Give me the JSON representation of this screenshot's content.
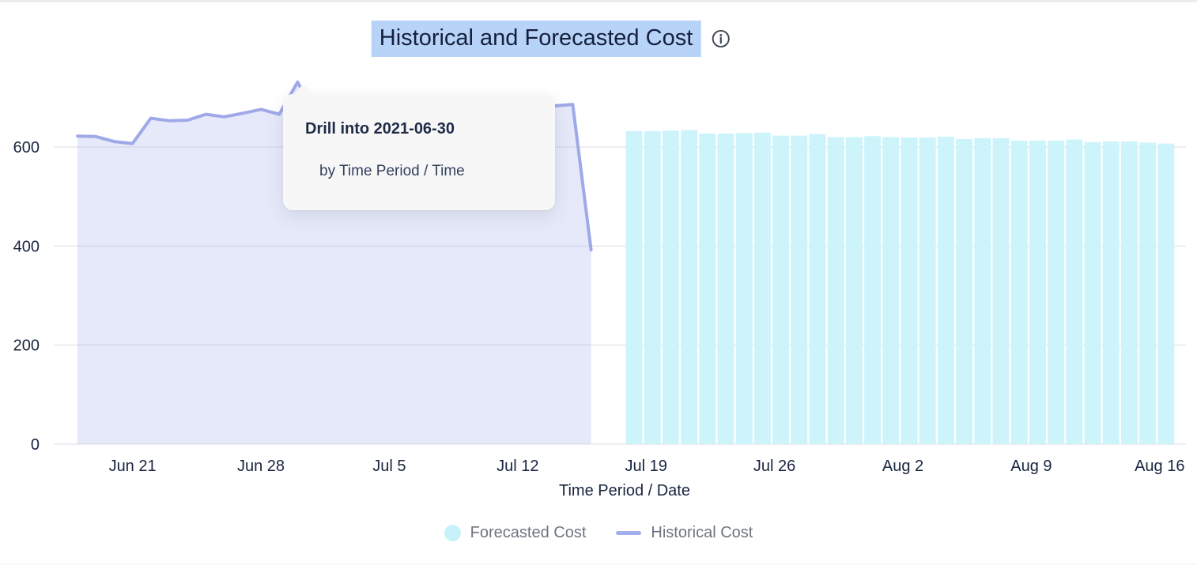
{
  "title": {
    "text": "Historical and Forecasted Cost"
  },
  "tooltip": {
    "title": "Drill into 2021-06-30",
    "subtitle": "by Time Period / Time"
  },
  "x_axis_title": "Time Period / Date",
  "legend": {
    "items": [
      {
        "label": "Forecasted Cost",
        "swatch": "dot"
      },
      {
        "label": "Historical Cost",
        "swatch": "line"
      }
    ]
  },
  "colors": {
    "historical_line": "#9fa9e8",
    "historical_fill": "rgba(159,169,232,0.26)",
    "forecast_bar": "#cdf4fb",
    "legend_dot": "#c7f2fa",
    "legend_line": "#a4aeea",
    "grid": "#e9e9ed",
    "axis_text": "#18243f",
    "legend_text": "#6e7580",
    "title_highlight": "#b7d3f8",
    "title_text": "#14203c",
    "tooltip_bg": "#f7f7f8"
  },
  "chart_data": {
    "type": "mixed",
    "title": "Historical and Forecasted Cost",
    "xlabel": "Time Period / Date",
    "ylabel": "",
    "ylim": [
      0,
      750
    ],
    "grid": true,
    "legend_position": "bottom",
    "y_ticks": [
      0,
      200,
      400,
      600
    ],
    "x_ticks": [
      {
        "label": "Jun 21",
        "day": 3
      },
      {
        "label": "Jun 28",
        "day": 10
      },
      {
        "label": "Jul 5",
        "day": 17
      },
      {
        "label": "Jul 12",
        "day": 24
      },
      {
        "label": "Jul 19",
        "day": 31
      },
      {
        "label": "Jul 26",
        "day": 38
      },
      {
        "label": "Aug 2",
        "day": 45
      },
      {
        "label": "Aug 9",
        "day": 52
      },
      {
        "label": "Aug 16",
        "day": 59
      }
    ],
    "series": [
      {
        "name": "Historical Cost",
        "type": "area-line",
        "start_day": 0,
        "dates": [
          "2021-06-18",
          "2021-06-19",
          "2021-06-20",
          "2021-06-21",
          "2021-06-22",
          "2021-06-23",
          "2021-06-24",
          "2021-06-25",
          "2021-06-26",
          "2021-06-27",
          "2021-06-28",
          "2021-06-29",
          "2021-06-30",
          "2021-07-01",
          "2021-07-02",
          "2021-07-03",
          "2021-07-04",
          "2021-07-05",
          "2021-07-06",
          "2021-07-07",
          "2021-07-08",
          "2021-07-09",
          "2021-07-10",
          "2021-07-11",
          "2021-07-12",
          "2021-07-13",
          "2021-07-14",
          "2021-07-15",
          "2021-07-16"
        ],
        "values": [
          622,
          621,
          611,
          607,
          658,
          653,
          654,
          666,
          661,
          668,
          676,
          666,
          731,
          665,
          660,
          668,
          663,
          662,
          666,
          661,
          664,
          660,
          667,
          672,
          678,
          681,
          683,
          686,
          392
        ]
      },
      {
        "name": "Forecasted Cost",
        "type": "bar",
        "start_day": 30,
        "dates": [
          "2021-07-18",
          "2021-07-19",
          "2021-07-20",
          "2021-07-21",
          "2021-07-22",
          "2021-07-23",
          "2021-07-24",
          "2021-07-25",
          "2021-07-26",
          "2021-07-27",
          "2021-07-28",
          "2021-07-29",
          "2021-07-30",
          "2021-07-31",
          "2021-08-01",
          "2021-08-02",
          "2021-08-03",
          "2021-08-04",
          "2021-08-05",
          "2021-08-06",
          "2021-08-07",
          "2021-08-08",
          "2021-08-09",
          "2021-08-10",
          "2021-08-11",
          "2021-08-12",
          "2021-08-13",
          "2021-08-14",
          "2021-08-15",
          "2021-08-16"
        ],
        "values": [
          632,
          632,
          633,
          634,
          627,
          627,
          628,
          629,
          623,
          623,
          626,
          620,
          620,
          622,
          620,
          619,
          619,
          621,
          616,
          618,
          618,
          613,
          613,
          613,
          615,
          610,
          611,
          611,
          609,
          607
        ]
      }
    ]
  }
}
